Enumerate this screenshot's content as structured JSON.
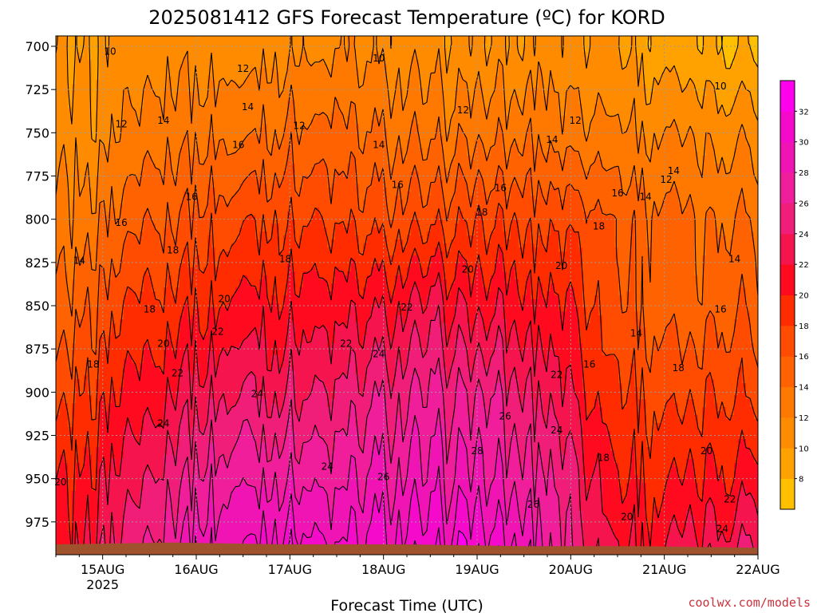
{
  "chart_data": {
    "type": "heatmap",
    "title": "2025081412 GFS Forecast Temperature (ºC) for KORD",
    "xlabel": "Forecast Time (UTC)",
    "ylabel": "",
    "credit": "coolwx.com/models",
    "x_ticks": [
      {
        "label": "15AUG",
        "sublabel": "2025",
        "value": 1.0
      },
      {
        "label": "16AUG",
        "sublabel": "",
        "value": 2.0
      },
      {
        "label": "17AUG",
        "sublabel": "",
        "value": 3.0
      },
      {
        "label": "18AUG",
        "sublabel": "",
        "value": 4.0
      },
      {
        "label": "19AUG",
        "sublabel": "",
        "value": 5.0
      },
      {
        "label": "20AUG",
        "sublabel": "",
        "value": 6.0
      },
      {
        "label": "21AUG",
        "sublabel": "",
        "value": 7.0
      },
      {
        "label": "22AUG",
        "sublabel": "",
        "value": 8.0
      }
    ],
    "xlim": [
      0.5,
      8.0
    ],
    "y_ticks": [
      700,
      725,
      750,
      775,
      800,
      825,
      850,
      875,
      900,
      925,
      950,
      975
    ],
    "ylim": [
      694,
      994
    ],
    "y_inverted": true,
    "surface_pressure": [
      988,
      987,
      988,
      988,
      989,
      989,
      990
    ],
    "colorbar": {
      "levels": [
        6,
        8,
        10,
        12,
        14,
        16,
        18,
        20,
        22,
        24,
        26,
        28,
        30,
        32,
        34
      ],
      "labels": [
        "8",
        "10",
        "12",
        "14",
        "16",
        "18",
        "20",
        "22",
        "24",
        "26",
        "28",
        "30",
        "32"
      ],
      "colors": [
        "#ffc000",
        "#ffa200",
        "#ff8c00",
        "#ff7800",
        "#ff6200",
        "#ff4c00",
        "#ff2c00",
        "#ff0a1e",
        "#f5144e",
        "#f01e78",
        "#f01e9a",
        "#f014b4",
        "#f50acc",
        "#ff00ee"
      ]
    },
    "time_points": [
      0.5,
      1.0,
      1.5,
      2.0,
      2.5,
      3.0,
      3.5,
      4.0,
      4.5,
      5.0,
      5.5,
      6.0,
      6.5,
      7.0,
      7.5,
      8.0
    ],
    "pressure_levels": [
      700,
      750,
      800,
      850,
      900,
      950,
      990
    ],
    "temperature": [
      [
        9.5,
        10.5,
        11.0,
        11.5,
        11.0,
        12.0,
        11.5,
        11.0,
        10.5,
        10.5,
        10.5,
        11.0,
        10.0,
        8.5,
        8.0,
        7.5
      ],
      [
        11.0,
        11.5,
        13.0,
        14.0,
        13.5,
        15.0,
        14.5,
        13.5,
        13.0,
        13.5,
        13.5,
        13.0,
        12.5,
        11.5,
        11.5,
        11.0
      ],
      [
        12.0,
        14.0,
        16.0,
        17.0,
        17.5,
        18.5,
        17.5,
        16.5,
        17.0,
        18.0,
        17.5,
        17.5,
        16.0,
        14.0,
        14.0,
        13.5
      ],
      [
        14.0,
        17.0,
        19.0,
        20.0,
        20.5,
        21.5,
        21.0,
        21.0,
        22.5,
        21.5,
        21.0,
        20.0,
        16.5,
        14.5,
        15.0,
        15.5
      ],
      [
        16.5,
        19.5,
        21.5,
        23.5,
        24.0,
        24.5,
        24.0,
        25.0,
        26.0,
        26.0,
        24.5,
        22.0,
        18.5,
        17.0,
        17.5,
        18.0
      ],
      [
        19.0,
        22.0,
        24.5,
        27.0,
        27.5,
        28.5,
        27.0,
        28.0,
        28.5,
        28.5,
        27.0,
        25.0,
        20.0,
        19.5,
        20.0,
        21.5
      ],
      [
        20.0,
        24.0,
        26.5,
        29.5,
        30.0,
        32.0,
        29.5,
        30.5,
        31.0,
        31.5,
        29.5,
        26.0,
        22.0,
        21.5,
        23.0,
        24.5
      ]
    ],
    "contour_labels": [
      {
        "text": "10",
        "t": 1.08,
        "p": 703
      },
      {
        "text": "10",
        "t": 3.95,
        "p": 707
      },
      {
        "text": "10",
        "t": 7.6,
        "p": 723
      },
      {
        "text": "12",
        "t": 2.5,
        "p": 713
      },
      {
        "text": "12",
        "t": 1.2,
        "p": 745
      },
      {
        "text": "12",
        "t": 3.1,
        "p": 746
      },
      {
        "text": "12",
        "t": 4.85,
        "p": 737
      },
      {
        "text": "12",
        "t": 6.05,
        "p": 743
      },
      {
        "text": "12",
        "t": 7.02,
        "p": 777
      },
      {
        "text": "14",
        "t": 1.65,
        "p": 743
      },
      {
        "text": "14",
        "t": 2.55,
        "p": 735
      },
      {
        "text": "14",
        "t": 3.95,
        "p": 757
      },
      {
        "text": "14",
        "t": 5.8,
        "p": 754
      },
      {
        "text": "14",
        "t": 7.1,
        "p": 772
      },
      {
        "text": "14",
        "t": 6.8,
        "p": 787
      },
      {
        "text": "14",
        "t": 7.75,
        "p": 823
      },
      {
        "text": "14",
        "t": 0.75,
        "p": 824
      },
      {
        "text": "14",
        "t": 6.7,
        "p": 866
      },
      {
        "text": "16",
        "t": 2.45,
        "p": 757
      },
      {
        "text": "16",
        "t": 1.95,
        "p": 787
      },
      {
        "text": "16",
        "t": 4.15,
        "p": 780
      },
      {
        "text": "16",
        "t": 1.2,
        "p": 802
      },
      {
        "text": "16",
        "t": 5.25,
        "p": 782
      },
      {
        "text": "16",
        "t": 6.5,
        "p": 785
      },
      {
        "text": "16",
        "t": 7.6,
        "p": 852
      },
      {
        "text": "16",
        "t": 6.2,
        "p": 884
      },
      {
        "text": "18",
        "t": 1.75,
        "p": 818
      },
      {
        "text": "18",
        "t": 2.95,
        "p": 823
      },
      {
        "text": "18",
        "t": 5.05,
        "p": 796
      },
      {
        "text": "18",
        "t": 6.3,
        "p": 804
      },
      {
        "text": "18",
        "t": 1.5,
        "p": 852
      },
      {
        "text": "18",
        "t": 0.9,
        "p": 884
      },
      {
        "text": "18",
        "t": 6.35,
        "p": 938
      },
      {
        "text": "18",
        "t": 7.15,
        "p": 886
      },
      {
        "text": "20",
        "t": 4.9,
        "p": 829
      },
      {
        "text": "20",
        "t": 2.3,
        "p": 846
      },
      {
        "text": "20",
        "t": 1.65,
        "p": 872
      },
      {
        "text": "20",
        "t": 5.9,
        "p": 827
      },
      {
        "text": "20",
        "t": 0.55,
        "p": 952
      },
      {
        "text": "20",
        "t": 6.6,
        "p": 972
      },
      {
        "text": "20",
        "t": 7.45,
        "p": 934
      },
      {
        "text": "22",
        "t": 4.25,
        "p": 851
      },
      {
        "text": "22",
        "t": 2.23,
        "p": 865
      },
      {
        "text": "22",
        "t": 3.6,
        "p": 872
      },
      {
        "text": "22",
        "t": 1.8,
        "p": 889
      },
      {
        "text": "22",
        "t": 5.85,
        "p": 890
      },
      {
        "text": "22",
        "t": 7.7,
        "p": 962
      },
      {
        "text": "24",
        "t": 3.95,
        "p": 878
      },
      {
        "text": "24",
        "t": 2.65,
        "p": 901
      },
      {
        "text": "24",
        "t": 1.65,
        "p": 918
      },
      {
        "text": "24",
        "t": 3.4,
        "p": 943
      },
      {
        "text": "24",
        "t": 5.85,
        "p": 922
      },
      {
        "text": "24",
        "t": 7.62,
        "p": 979
      },
      {
        "text": "26",
        "t": 5.3,
        "p": 914
      },
      {
        "text": "26",
        "t": 4.0,
        "p": 949
      },
      {
        "text": "26",
        "t": 5.6,
        "p": 965
      },
      {
        "text": "28",
        "t": 5.0,
        "p": 934
      }
    ]
  }
}
